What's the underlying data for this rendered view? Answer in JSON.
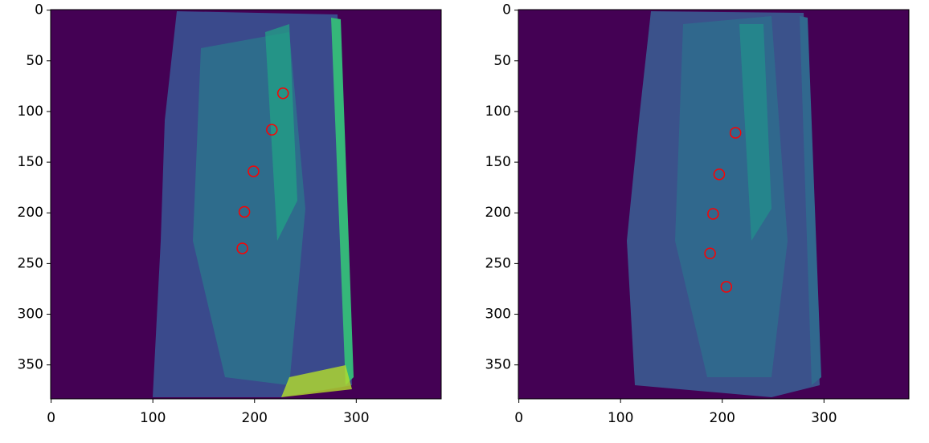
{
  "chart_data": [
    {
      "type": "scatter",
      "x": [
        228,
        217,
        199,
        190,
        188
      ],
      "values": [
        82,
        118,
        159,
        199,
        235
      ],
      "color": "#ff0000",
      "xlim": [
        -0.5,
        383.5
      ],
      "ylim": [
        383.5,
        -0.5
      ],
      "xticks": [
        0,
        100,
        200,
        300
      ],
      "yticks": [
        0,
        50,
        100,
        150,
        200,
        250,
        300,
        350
      ]
    },
    {
      "type": "scatter",
      "x": [
        213,
        197,
        191,
        188,
        204
      ],
      "values": [
        121,
        162,
        201,
        240,
        273
      ],
      "color": "#ff0000",
      "xlim": [
        -0.5,
        383.5
      ],
      "ylim": [
        383.5,
        -0.5
      ],
      "xticks": [
        0,
        100,
        200,
        300
      ],
      "yticks": [
        0,
        50,
        100,
        150,
        200,
        250,
        300,
        350
      ]
    }
  ]
}
